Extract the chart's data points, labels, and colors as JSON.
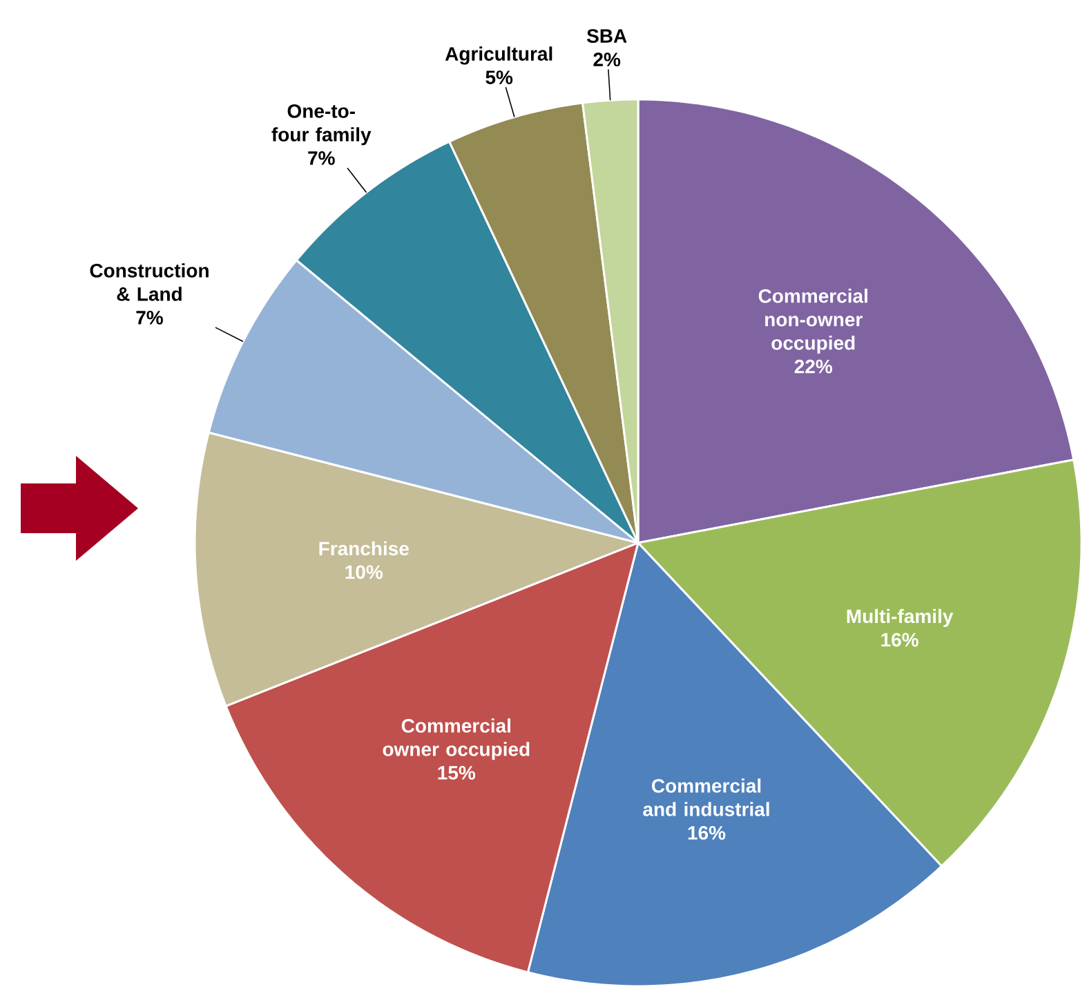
{
  "chart_data": {
    "type": "pie",
    "categories": [
      "Commercial non-owner occupied",
      "Multi-family",
      "Commercial and industrial",
      "Commercial owner occupied",
      "Franchise",
      "Construction & Land",
      "One-to-four family",
      "Agricultural",
      "SBA"
    ],
    "values": [
      22,
      16,
      16,
      15,
      10,
      7,
      7,
      5,
      2
    ],
    "value_labels": [
      "22%",
      "16%",
      "16%",
      "15%",
      "10%",
      "7%",
      "7%",
      "5%",
      "2%"
    ],
    "colors": [
      "#8064a2",
      "#9bbb59",
      "#4f81bd",
      "#c0504d",
      "#c4bd97",
      "#95b3d7",
      "#31859c",
      "#948a54",
      "#c3d69b"
    ]
  }
}
